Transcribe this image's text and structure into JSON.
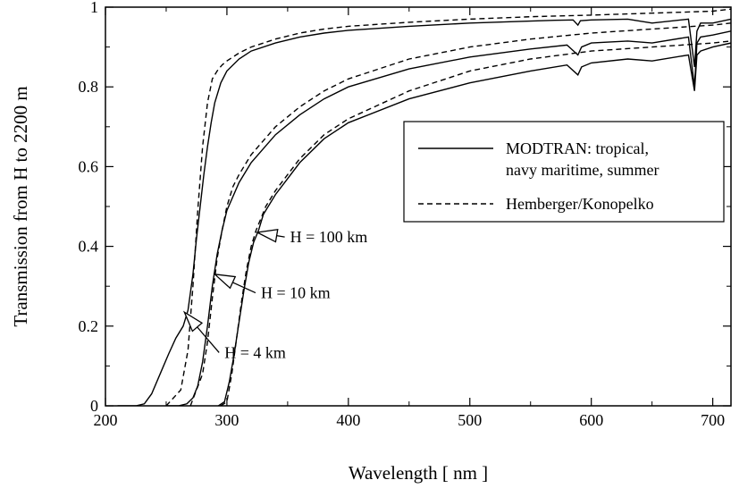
{
  "chart_data": {
    "type": "line",
    "title": "",
    "xlabel": "Wavelength [ nm ]",
    "ylabel": "Transmission from H to 2200 m",
    "xlim": [
      200,
      715
    ],
    "ylim": [
      0,
      1
    ],
    "grid": false,
    "x_ticks": [
      {
        "value": 200,
        "label": "200"
      },
      {
        "value": 300,
        "label": "300"
      },
      {
        "value": 400,
        "label": "400"
      },
      {
        "value": 500,
        "label": "500"
      },
      {
        "value": 600,
        "label": "600"
      },
      {
        "value": 700,
        "label": "700"
      }
    ],
    "y_ticks": [
      {
        "value": 0,
        "label": "0"
      },
      {
        "value": 0.2,
        "label": "0.2"
      },
      {
        "value": 0.4,
        "label": "0.4"
      },
      {
        "value": 0.6,
        "label": "0.6"
      },
      {
        "value": 0.8,
        "label": "0.8"
      },
      {
        "value": 1,
        "label": "1"
      }
    ],
    "legend": {
      "position": "right",
      "entries": [
        {
          "style": "solid",
          "lines": [
            "MODTRAN: tropical,",
            "navy maritime, summer"
          ]
        },
        {
          "style": "dashed",
          "lines": [
            "Hemberger/Konopelko"
          ]
        }
      ]
    },
    "annotations": [
      {
        "text": "H = 100 km",
        "arrow_to": [
          325,
          0.435
        ],
        "label_at": [
          352,
          0.41
        ]
      },
      {
        "text": "H = 10 km",
        "arrow_to": [
          290,
          0.33
        ],
        "label_at": [
          328,
          0.27
        ]
      },
      {
        "text": "H = 4 km",
        "arrow_to": [
          265,
          0.235
        ],
        "label_at": [
          298,
          0.12
        ]
      }
    ],
    "series": [
      {
        "style": "solid",
        "x": [
          210,
          225,
          232,
          238,
          245,
          252,
          258,
          264,
          268,
          272,
          275,
          278,
          281,
          284,
          287,
          290,
          295,
          300,
          310,
          320,
          340,
          360,
          380,
          400,
          450,
          500,
          550,
          570,
          585,
          589,
          591,
          600,
          630,
          650,
          680,
          685,
          687,
          690,
          700,
          715
        ],
        "y": [
          0,
          0,
          0.005,
          0.03,
          0.08,
          0.13,
          0.17,
          0.2,
          0.24,
          0.33,
          0.42,
          0.5,
          0.58,
          0.65,
          0.71,
          0.76,
          0.81,
          0.84,
          0.87,
          0.89,
          0.91,
          0.925,
          0.935,
          0.942,
          0.952,
          0.96,
          0.965,
          0.967,
          0.968,
          0.955,
          0.966,
          0.968,
          0.97,
          0.96,
          0.97,
          0.85,
          0.94,
          0.96,
          0.96,
          0.97
        ]
      },
      {
        "style": "dashed",
        "x": [
          250,
          262,
          268,
          272,
          276,
          280,
          284,
          288,
          292,
          296,
          300,
          310,
          320,
          340,
          360,
          380,
          400,
          450,
          500,
          550,
          600,
          650,
          700,
          715
        ],
        "y": [
          0,
          0.04,
          0.14,
          0.3,
          0.49,
          0.65,
          0.76,
          0.82,
          0.84,
          0.855,
          0.865,
          0.885,
          0.9,
          0.92,
          0.935,
          0.945,
          0.952,
          0.962,
          0.97,
          0.976,
          0.98,
          0.985,
          0.99,
          0.995
        ]
      },
      {
        "style": "solid",
        "x": [
          250,
          260,
          267,
          272,
          276,
          280,
          284,
          288,
          292,
          296,
          300,
          310,
          320,
          340,
          360,
          380,
          400,
          450,
          500,
          550,
          580,
          589,
          592,
          600,
          630,
          650,
          680,
          685,
          687,
          690,
          700,
          715
        ],
        "y": [
          0,
          0,
          0.005,
          0.02,
          0.05,
          0.11,
          0.2,
          0.3,
          0.38,
          0.44,
          0.49,
          0.56,
          0.61,
          0.68,
          0.73,
          0.77,
          0.8,
          0.845,
          0.875,
          0.895,
          0.905,
          0.88,
          0.9,
          0.91,
          0.915,
          0.91,
          0.925,
          0.8,
          0.91,
          0.925,
          0.93,
          0.94
        ]
      },
      {
        "style": "dashed",
        "x": [
          270,
          280,
          284,
          288,
          292,
          296,
          300,
          305,
          310,
          320,
          340,
          360,
          380,
          400,
          450,
          500,
          550,
          600,
          650,
          700,
          715
        ],
        "y": [
          0,
          0.08,
          0.16,
          0.27,
          0.37,
          0.44,
          0.5,
          0.55,
          0.58,
          0.63,
          0.7,
          0.75,
          0.79,
          0.82,
          0.87,
          0.9,
          0.92,
          0.935,
          0.945,
          0.955,
          0.96
        ]
      },
      {
        "style": "solid",
        "x": [
          293,
          298,
          302,
          306,
          310,
          314,
          318,
          322,
          326,
          330,
          340,
          350,
          360,
          380,
          400,
          450,
          500,
          550,
          580,
          589,
          592,
          600,
          630,
          650,
          680,
          685,
          687,
          690,
          700,
          715
        ],
        "y": [
          0,
          0.01,
          0.06,
          0.13,
          0.21,
          0.29,
          0.36,
          0.41,
          0.44,
          0.48,
          0.53,
          0.57,
          0.61,
          0.67,
          0.71,
          0.77,
          0.81,
          0.84,
          0.855,
          0.83,
          0.85,
          0.86,
          0.87,
          0.865,
          0.88,
          0.79,
          0.88,
          0.89,
          0.9,
          0.91
        ]
      },
      {
        "style": "dashed",
        "x": [
          295,
          300,
          304,
          308,
          312,
          316,
          320,
          324,
          328,
          332,
          340,
          350,
          360,
          380,
          400,
          450,
          500,
          550,
          600,
          650,
          700,
          715
        ],
        "y": [
          0,
          0.01,
          0.08,
          0.17,
          0.26,
          0.34,
          0.4,
          0.44,
          0.47,
          0.5,
          0.54,
          0.58,
          0.62,
          0.68,
          0.72,
          0.79,
          0.84,
          0.87,
          0.89,
          0.9,
          0.91,
          0.915
        ]
      }
    ]
  }
}
